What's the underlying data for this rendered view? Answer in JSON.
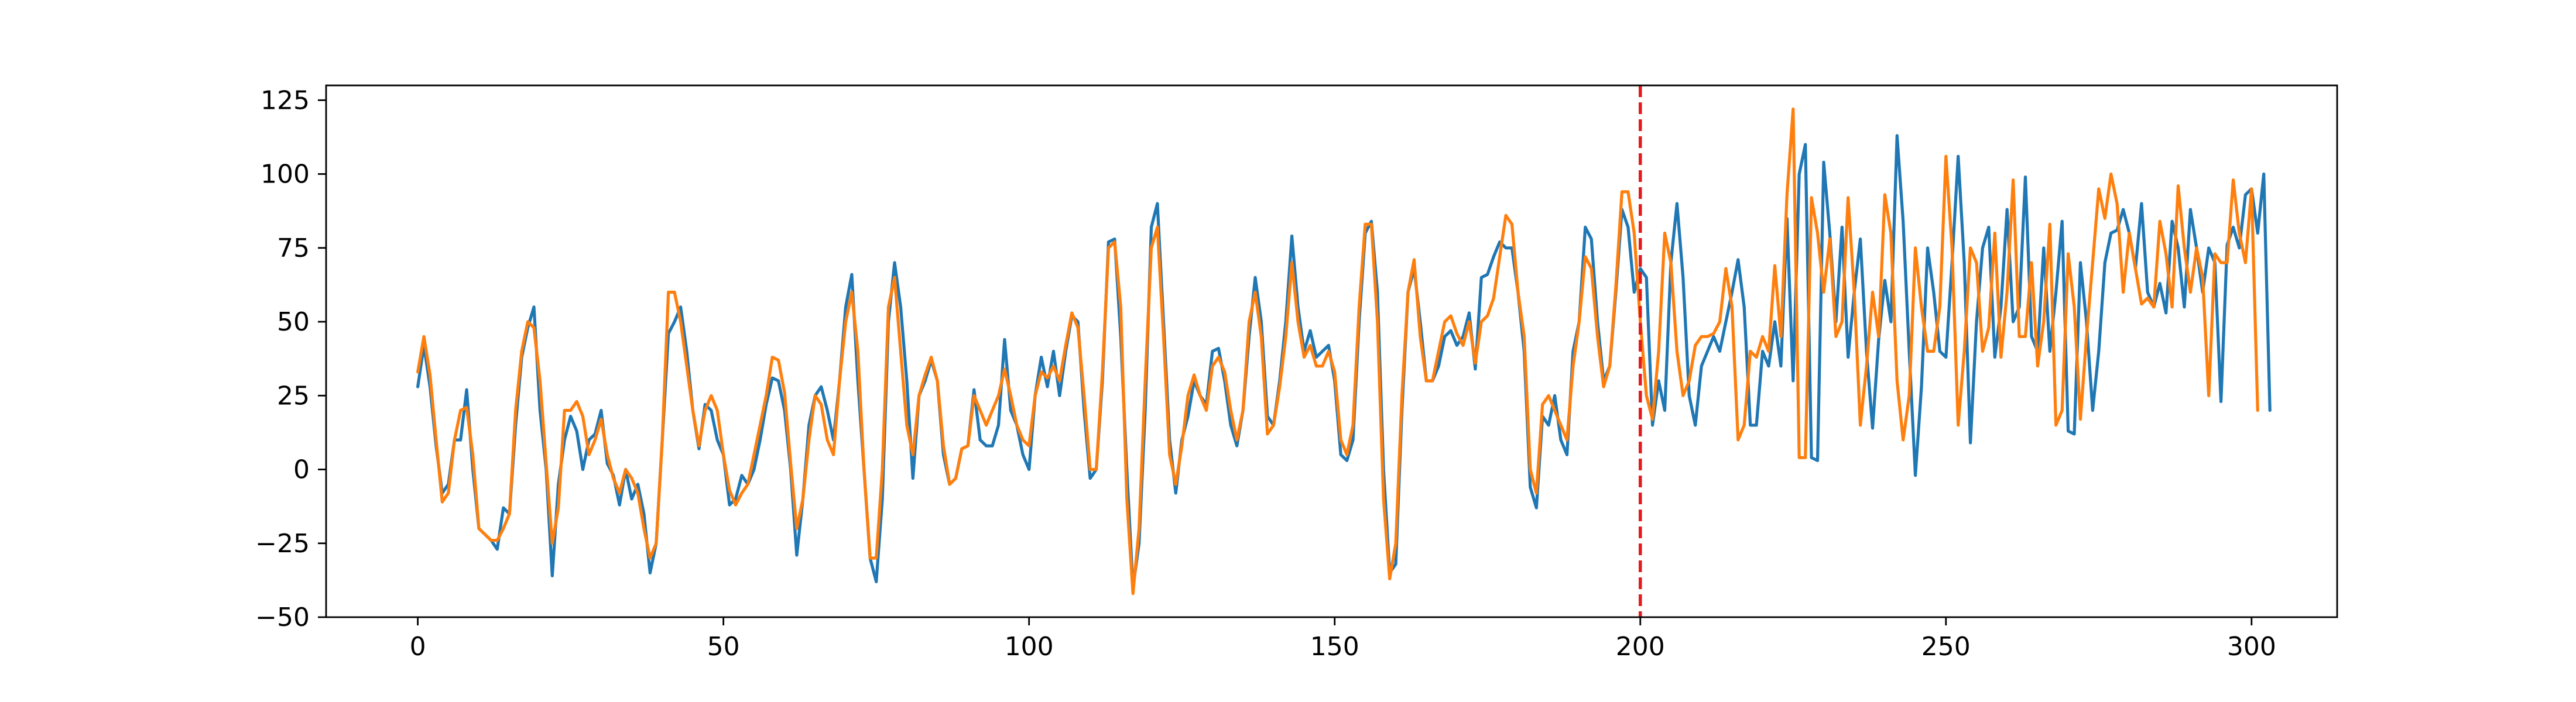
{
  "chart_data": {
    "type": "line",
    "title": "",
    "xlabel": "",
    "ylabel": "",
    "xlim": [
      -15,
      314
    ],
    "ylim": [
      -50,
      130
    ],
    "xticks": [
      0,
      50,
      100,
      150,
      200,
      250,
      300
    ],
    "yticks": [
      -50,
      -25,
      0,
      25,
      50,
      75,
      100,
      125
    ],
    "xtick_labels": [
      "0",
      "50",
      "100",
      "150",
      "200",
      "250",
      "300"
    ],
    "ytick_labels": [
      "−50",
      "−25",
      "0",
      "25",
      "50",
      "75",
      "100",
      "125"
    ],
    "grid": false,
    "vertical_line": {
      "x": 200,
      "color": "#e41a1c",
      "style": "dashed"
    },
    "series": [
      {
        "color": "#1f77b4",
        "x_start": 0,
        "values": [
          28,
          42,
          28,
          8,
          -8,
          -5,
          10,
          10,
          27,
          0,
          -20,
          -22,
          -24,
          -27,
          -13,
          -15,
          15,
          38,
          48,
          55,
          20,
          0,
          -36,
          -5,
          10,
          18,
          13,
          0,
          10,
          12,
          20,
          2,
          -2,
          -12,
          0,
          -10,
          -5,
          -15,
          -35,
          -25,
          10,
          46,
          50,
          55,
          40,
          20,
          7,
          22,
          20,
          10,
          5,
          -12,
          -10,
          -2,
          -5,
          0,
          10,
          22,
          31,
          30,
          20,
          0,
          -29,
          -10,
          15,
          25,
          28,
          20,
          10,
          30,
          55,
          66,
          30,
          0,
          -30,
          -38,
          -10,
          50,
          70,
          55,
          30,
          -3,
          25,
          30,
          37,
          30,
          5,
          -5,
          -3,
          7,
          8,
          27,
          10,
          8,
          8,
          15,
          44,
          20,
          15,
          5,
          0,
          25,
          38,
          28,
          40,
          25,
          40,
          52,
          50,
          20,
          -3,
          0,
          30,
          77,
          78,
          45,
          0,
          -40,
          -25,
          20,
          82,
          90,
          50,
          10,
          -8,
          10,
          18,
          30,
          25,
          22,
          40,
          41,
          30,
          15,
          8,
          20,
          45,
          65,
          50,
          18,
          15,
          30,
          50,
          79,
          55,
          40,
          47,
          38,
          40,
          42,
          30,
          5,
          3,
          10,
          50,
          80,
          84,
          60,
          0,
          -35,
          -32,
          20,
          60,
          68,
          50,
          30,
          30,
          35,
          45,
          47,
          42,
          45,
          53,
          34,
          65,
          66,
          72,
          77,
          75,
          75,
          60,
          40,
          -6,
          -13,
          18,
          15,
          25,
          10,
          5,
          40,
          50,
          82,
          78,
          50,
          30,
          35,
          60,
          88,
          82,
          60,
          68,
          65,
          15,
          30,
          20,
          70,
          90,
          65,
          25,
          15,
          35,
          40,
          45,
          40,
          50,
          60,
          71,
          55,
          15,
          15,
          40,
          35,
          50,
          35,
          85,
          30,
          100,
          110,
          4,
          3,
          104,
          80,
          50,
          82,
          38,
          60,
          78,
          40,
          14,
          44,
          64,
          50,
          113,
          84,
          40,
          -2,
          28,
          75,
          60,
          40,
          38,
          70,
          106,
          70,
          9,
          50,
          75,
          82,
          38,
          55,
          88,
          50,
          55,
          99,
          45,
          40,
          75,
          40,
          60,
          84,
          13,
          12,
          70,
          50,
          20,
          40,
          70,
          80,
          81,
          88,
          80,
          68,
          90,
          60,
          55,
          63,
          53,
          84,
          75,
          55,
          88,
          75,
          60,
          75,
          70,
          23,
          76,
          82,
          75,
          93,
          95,
          80,
          100,
          20
        ],
        "name": ""
      },
      {
        "color": "#ff7f0e",
        "x_start": 0,
        "values": [
          33,
          45,
          32,
          10,
          -11,
          -8,
          10,
          20,
          21,
          5,
          -20,
          -22,
          -24,
          -24,
          -20,
          -15,
          20,
          40,
          50,
          48,
          30,
          2,
          -25,
          -13,
          20,
          20,
          23,
          18,
          5,
          10,
          17,
          5,
          -3,
          -8,
          0,
          -3,
          -8,
          -20,
          -30,
          -25,
          10,
          60,
          60,
          50,
          35,
          20,
          8,
          20,
          25,
          20,
          5,
          -7,
          -12,
          -8,
          -5,
          5,
          15,
          25,
          38,
          37,
          26,
          2,
          -20,
          -10,
          10,
          25,
          22,
          10,
          5,
          30,
          50,
          60,
          40,
          0,
          -30,
          -30,
          0,
          55,
          65,
          40,
          15,
          5,
          25,
          32,
          38,
          30,
          8,
          -5,
          -3,
          7,
          8,
          25,
          20,
          15,
          20,
          25,
          34,
          25,
          15,
          10,
          8,
          25,
          33,
          31,
          35,
          30,
          42,
          53,
          48,
          25,
          0,
          0,
          33,
          75,
          77,
          55,
          -10,
          -42,
          -20,
          30,
          75,
          82,
          45,
          5,
          -5,
          8,
          25,
          32,
          25,
          20,
          35,
          38,
          33,
          20,
          10,
          20,
          50,
          60,
          45,
          12,
          15,
          28,
          45,
          70,
          50,
          38,
          42,
          35,
          35,
          40,
          33,
          10,
          5,
          15,
          55,
          83,
          83,
          50,
          -10,
          -37,
          -25,
          25,
          60,
          71,
          45,
          30,
          30,
          40,
          50,
          52,
          46,
          42,
          50,
          36,
          50,
          52,
          58,
          72,
          86,
          83,
          60,
          45,
          0,
          -8,
          22,
          25,
          20,
          15,
          10,
          35,
          50,
          72,
          68,
          45,
          28,
          35,
          62,
          94,
          94,
          80,
          50,
          25,
          17,
          40,
          80,
          70,
          40,
          25,
          30,
          42,
          45,
          45,
          46,
          50,
          68,
          55,
          10,
          15,
          40,
          38,
          45,
          40,
          69,
          45,
          93,
          122,
          4,
          4,
          92,
          80,
          60,
          78,
          45,
          50,
          92,
          60,
          15,
          35,
          60,
          45,
          93,
          80,
          30,
          10,
          25,
          75,
          55,
          40,
          40,
          55,
          106,
          75,
          15,
          40,
          75,
          70,
          40,
          48,
          80,
          38,
          60,
          98,
          45,
          45,
          70,
          35,
          50,
          83,
          15,
          20,
          73,
          55,
          17,
          45,
          70,
          95,
          85,
          100,
          90,
          60,
          80,
          68,
          56,
          58,
          55,
          84,
          73,
          55,
          96,
          75,
          60,
          75,
          65,
          25,
          73,
          70,
          70,
          98,
          80,
          70,
          95,
          20
        ],
        "name": ""
      }
    ]
  }
}
